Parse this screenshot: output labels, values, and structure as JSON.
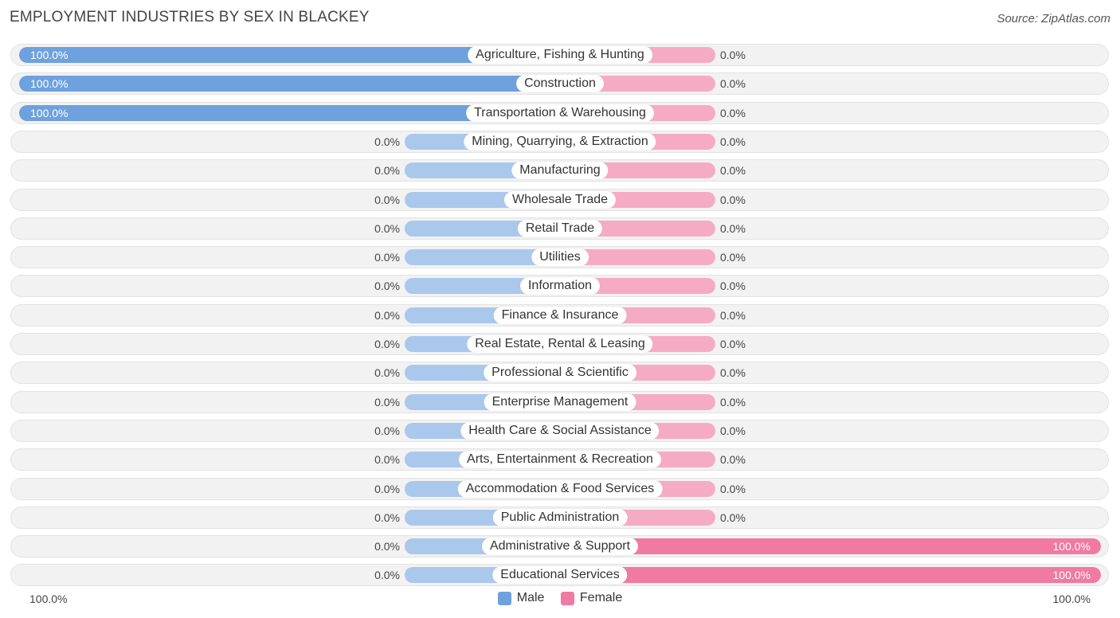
{
  "title": "EMPLOYMENT INDUSTRIES BY SEX IN BLACKEY",
  "source": "Source: ZipAtlas.com",
  "colors": {
    "male": "#6ea1dd",
    "male_light": "#aac8ec",
    "female": "#f07aa1",
    "female_light": "#f6abc4"
  },
  "chart_data": {
    "type": "bar",
    "orientation": "horizontal-diverging",
    "categories": [
      "Agriculture, Fishing & Hunting",
      "Construction",
      "Transportation & Warehousing",
      "Mining, Quarrying, & Extraction",
      "Manufacturing",
      "Wholesale Trade",
      "Retail Trade",
      "Utilities",
      "Information",
      "Finance & Insurance",
      "Real Estate, Rental & Leasing",
      "Professional & Scientific",
      "Enterprise Management",
      "Health Care & Social Assistance",
      "Arts, Entertainment & Recreation",
      "Accommodation & Food Services",
      "Public Administration",
      "Administrative & Support",
      "Educational Services"
    ],
    "series": [
      {
        "name": "Male",
        "values": [
          100,
          100,
          100,
          0,
          0,
          0,
          0,
          0,
          0,
          0,
          0,
          0,
          0,
          0,
          0,
          0,
          0,
          0,
          0
        ],
        "labels": [
          "100.0%",
          "100.0%",
          "100.0%",
          "0.0%",
          "0.0%",
          "0.0%",
          "0.0%",
          "0.0%",
          "0.0%",
          "0.0%",
          "0.0%",
          "0.0%",
          "0.0%",
          "0.0%",
          "0.0%",
          "0.0%",
          "0.0%",
          "0.0%",
          "0.0%"
        ]
      },
      {
        "name": "Female",
        "values": [
          0,
          0,
          0,
          0,
          0,
          0,
          0,
          0,
          0,
          0,
          0,
          0,
          0,
          0,
          0,
          0,
          0,
          100,
          100
        ],
        "labels": [
          "0.0%",
          "0.0%",
          "0.0%",
          "0.0%",
          "0.0%",
          "0.0%",
          "0.0%",
          "0.0%",
          "0.0%",
          "0.0%",
          "0.0%",
          "0.0%",
          "0.0%",
          "0.0%",
          "0.0%",
          "0.0%",
          "0.0%",
          "100.0%",
          "100.0%"
        ]
      }
    ],
    "xlim": [
      -100,
      100
    ],
    "axis_left_label": "100.0%",
    "axis_right_label": "100.0%",
    "legend": [
      "Male",
      "Female"
    ],
    "legend_position": "bottom-center"
  }
}
